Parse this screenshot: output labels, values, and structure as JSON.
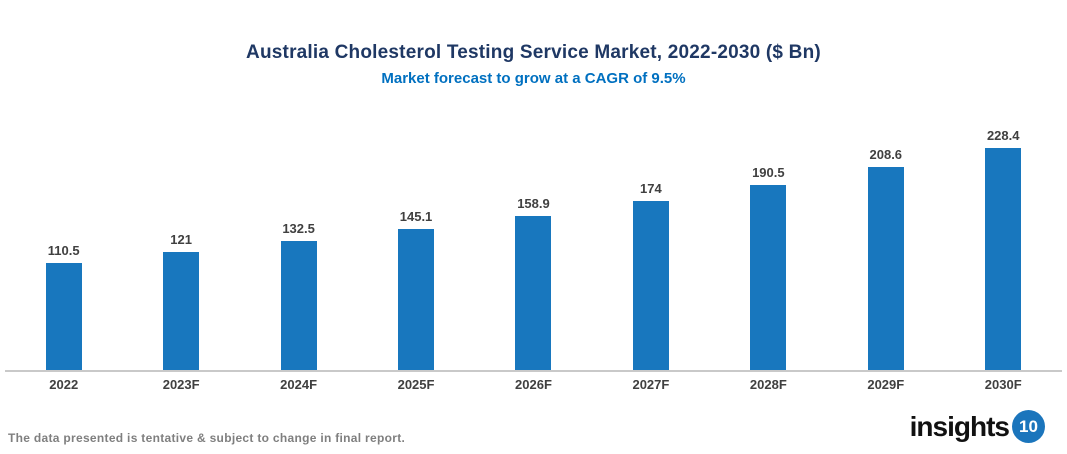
{
  "header": {
    "title": "Australia Cholesterol Testing Service Market, 2022-2030 ($ Bn)",
    "subtitle": "Market forecast to grow at a CAGR of 9.5%"
  },
  "chart_data": {
    "type": "bar",
    "categories": [
      "2022",
      "2023F",
      "2024F",
      "2025F",
      "2026F",
      "2027F",
      "2028F",
      "2029F",
      "2030F"
    ],
    "values": [
      110.5,
      121,
      132.5,
      145.1,
      158.9,
      174,
      190.5,
      208.6,
      228.4
    ],
    "title": "Australia Cholesterol Testing Service Market, 2022-2030 ($ Bn)",
    "subtitle": "Market forecast to grow at a CAGR of 9.5%",
    "xlabel": "",
    "ylabel": "",
    "ylim": [
      0,
      240
    ],
    "y_axis_visible": false,
    "grid": false,
    "legend": false,
    "value_labels": true,
    "bar_color": "#1877BE"
  },
  "footer": {
    "disclaimer": "The data presented is tentative & subject to change in final report."
  },
  "logo": {
    "text": "insights",
    "badge": "10"
  },
  "colors": {
    "background": "#FFFFFF",
    "bar": "#1877BE",
    "title": "#1F3864",
    "subtitle": "#0070C0",
    "value_label": "#404040",
    "axis_line": "#C9C9C9",
    "footer_text": "#7F7F7F",
    "logo_text": "#111111",
    "logo_badge": "#1B75BC"
  }
}
